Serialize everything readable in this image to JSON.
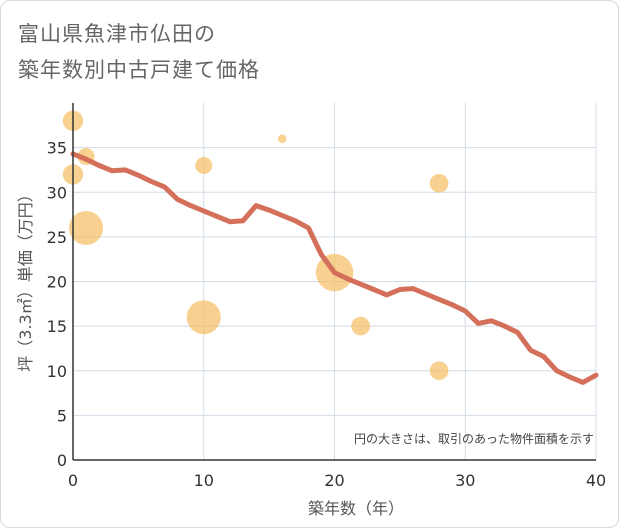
{
  "title_line1": "富山県魚津市仏田の",
  "title_line2": "築年数別中古戸建て価格",
  "chart_data": {
    "type": "scatter",
    "title": "富山県魚津市仏田の 築年数別中古戸建て価格",
    "xlabel": "築年数（年）",
    "ylabel": "坪（3.3㎡）単価（万円）",
    "xlim": [
      0,
      40
    ],
    "ylim": [
      0,
      40
    ],
    "x_ticks": [
      0,
      10,
      20,
      30,
      40
    ],
    "y_ticks": [
      0,
      5,
      10,
      15,
      20,
      25,
      30,
      35
    ],
    "grid": true,
    "note": "円の大きさは、取引のあった物件面積を示す",
    "colors": {
      "bubble": "#f5bd62",
      "line": "#d4705a",
      "grid": "#d3dce6",
      "axis": "#333333"
    },
    "bubbles": [
      {
        "x": 0,
        "y": 38,
        "size": 1.2
      },
      {
        "x": 0,
        "y": 32,
        "size": 1.2
      },
      {
        "x": 1,
        "y": 34,
        "size": 1.0
      },
      {
        "x": 1,
        "y": 26,
        "size": 2.0
      },
      {
        "x": 10,
        "y": 33,
        "size": 1.0
      },
      {
        "x": 10,
        "y": 16,
        "size": 2.0
      },
      {
        "x": 16,
        "y": 36,
        "size": 0.5
      },
      {
        "x": 20,
        "y": 21,
        "size": 2.2
      },
      {
        "x": 22,
        "y": 15,
        "size": 1.1
      },
      {
        "x": 28,
        "y": 31,
        "size": 1.1
      },
      {
        "x": 28,
        "y": 10,
        "size": 1.1
      }
    ],
    "trend": {
      "x": [
        0,
        1,
        2,
        3,
        4,
        5,
        6,
        7,
        8,
        9,
        10,
        11,
        12,
        13,
        14,
        15,
        16,
        17,
        18,
        19,
        20,
        21,
        22,
        23,
        24,
        25,
        26,
        27,
        28,
        29,
        30,
        31,
        32,
        33,
        34,
        35,
        36,
        37,
        38,
        39,
        40
      ],
      "y": [
        34.3,
        33.7,
        33.0,
        32.4,
        32.5,
        31.9,
        31.2,
        30.6,
        29.2,
        28.5,
        27.9,
        27.3,
        26.7,
        26.8,
        28.5,
        28.0,
        27.4,
        26.8,
        26.0,
        23.0,
        21.0,
        20.3,
        19.7,
        19.1,
        18.5,
        19.1,
        19.2,
        18.6,
        18.0,
        17.4,
        16.7,
        15.3,
        15.6,
        15.0,
        14.3,
        12.3,
        11.6,
        10.0,
        9.3,
        8.7,
        9.5
      ]
    }
  }
}
